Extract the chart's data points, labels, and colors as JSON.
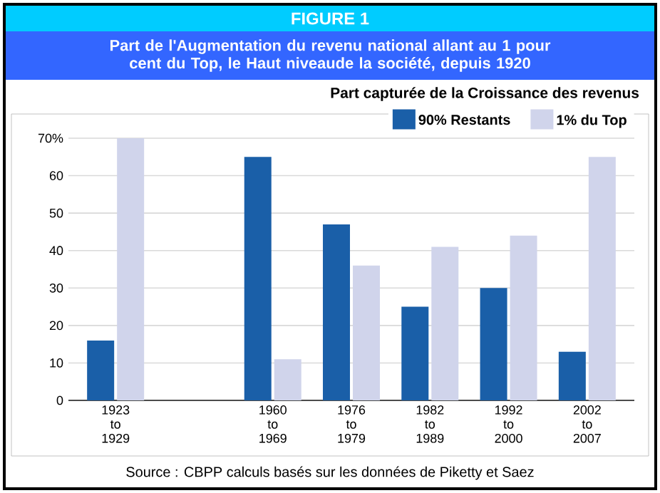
{
  "chart_data": {
    "type": "bar",
    "title": "FIGURE 1",
    "subtitle": "Part de l'Augmentation du revenu national allant au 1 pour cent du Top, le Haut niveaude la société, depuis 1920",
    "annotations": [
      "Part capturée de la Croissance des revenus",
      "Source : CBPP calculs basés sur les données de Piketty et Saez"
    ],
    "categories": [
      "1923 to 1929",
      null,
      "1960 to 1969",
      "1976 to 1979",
      "1982 to 1989",
      "1992 to 2000",
      "2002 to 2007"
    ],
    "series": [
      {
        "name": "90% Restants",
        "color": "#1a5fa8",
        "values": [
          16,
          null,
          65,
          47,
          25,
          30,
          13
        ]
      },
      {
        "name": "1% du Top",
        "color": "#d0d4eb",
        "values": [
          70,
          null,
          11,
          36,
          41,
          44,
          65
        ]
      }
    ],
    "ylim": [
      0,
      70
    ],
    "yticks": [
      0,
      10,
      20,
      30,
      40,
      50,
      60,
      {
        "value": 70,
        "label": "70%"
      }
    ],
    "grid": "y",
    "legend": "top right"
  }
}
